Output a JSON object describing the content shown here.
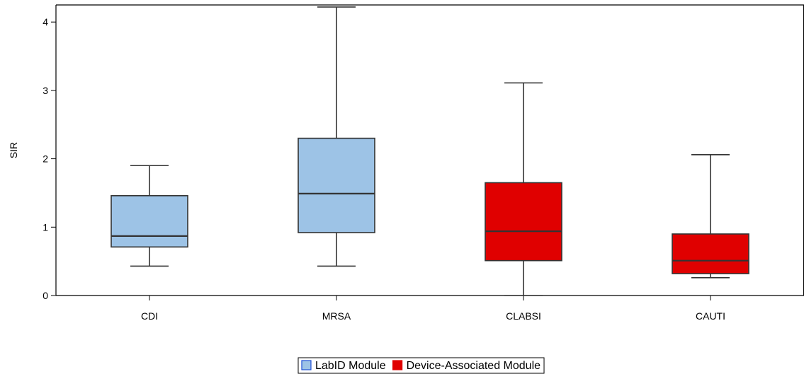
{
  "chart_data": {
    "type": "boxplot",
    "title": "",
    "xlabel": "",
    "ylabel": "SIR",
    "ylim": [
      0,
      4.25
    ],
    "yticks": [
      0,
      1,
      2,
      3,
      4
    ],
    "grid": false,
    "legend_placement": "bottom-center",
    "categories": [
      "CDI",
      "MRSA",
      "CLABSI",
      "CAUTI"
    ],
    "series": [
      {
        "name": "LabID Module",
        "color": "#9dc3e6"
      },
      {
        "name": "Device-Associated Module",
        "color": "#e00000"
      }
    ],
    "boxes": [
      {
        "category": "CDI",
        "series": "LabID Module",
        "min": 0.43,
        "q1": 0.71,
        "median": 0.87,
        "q3": 1.46,
        "max": 1.9
      },
      {
        "category": "MRSA",
        "series": "LabID Module",
        "min": 0.43,
        "q1": 0.92,
        "median": 1.49,
        "q3": 2.3,
        "max": 4.22
      },
      {
        "category": "CLABSI",
        "series": "Device-Associated Module",
        "min": 0.0,
        "q1": 0.51,
        "median": 0.94,
        "q3": 1.65,
        "max": 3.11
      },
      {
        "category": "CAUTI",
        "series": "Device-Associated Module",
        "min": 0.26,
        "q1": 0.32,
        "median": 0.51,
        "q3": 0.9,
        "max": 2.06
      }
    ]
  }
}
